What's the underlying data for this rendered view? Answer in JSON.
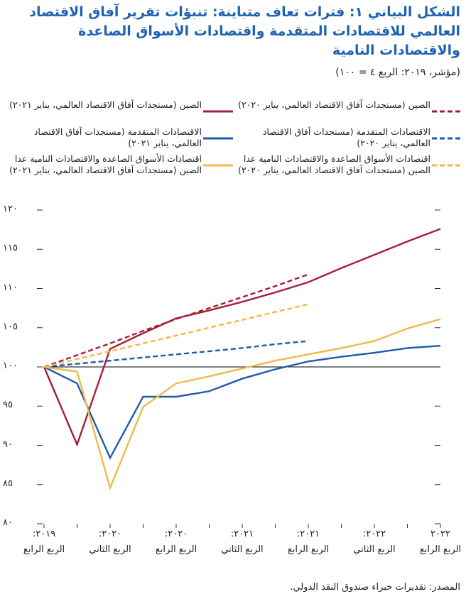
{
  "chart_data": {
    "type": "line",
    "title": "الشكل البياني ١: فترات تعاف متباينة: تنبؤات تقرير آفاق الاقتصاد العالمي للاقتصادات المتقدمة واقتصادات الأسواق الصاعدة والاقتصادات النامية",
    "subtitle": "(مؤشر، ٢٠١٩: الربع ٤ = ١٠٠)",
    "source": "المصدر: تقديرات خبراء صندوق النقد الدولي.",
    "categories": [
      "٢٠١٩:\nالربع الرابع",
      null,
      "٢٠٢٠:\nالربع الثاني",
      null,
      "٢٠٢٠:\nالربع الرابع",
      null,
      "٢٠٢١:\nالربع الثاني",
      null,
      "٢٠٢١:\nالربع الرابع",
      null,
      "٢٠٢٢:\nالربع الثاني",
      null,
      "٢٠٢٢\nالربع الرابع"
    ],
    "ylim": [
      80,
      120
    ],
    "yticks": [
      {
        "value": 80,
        "label": "٨٠"
      },
      {
        "value": 85,
        "label": "٨٥"
      },
      {
        "value": 90,
        "label": "٩٠"
      },
      {
        "value": 95,
        "label": "٩٥"
      },
      {
        "value": 100,
        "label": "١٠٠"
      },
      {
        "value": 105,
        "label": "١٠٥"
      },
      {
        "value": 110,
        "label": "١١٠"
      },
      {
        "value": 115,
        "label": "١١٥"
      },
      {
        "value": 120,
        "label": "١٢٠"
      }
    ],
    "reference_line": 100,
    "series": [
      {
        "name": "الصين (مستجدات آفاق الاقتصاد العالمي، يناير ٢٠٢٠)",
        "color": "#a51f37",
        "style": "dashed",
        "values": [
          100,
          101.5,
          103,
          104.6,
          106.1,
          107.5,
          108.9,
          110.3,
          111.8,
          null,
          null,
          null,
          null
        ]
      },
      {
        "name": "الصين (مستجدات آفاق الاقتصاد العالمي، يناير ٢٠٢١)",
        "color": "#a51f37",
        "style": "solid",
        "values": [
          100,
          90.1,
          102.3,
          104.3,
          106.2,
          107.2,
          108.3,
          109.5,
          110.8,
          112.6,
          114.3,
          116,
          117.6
        ]
      },
      {
        "name": "الاقتصادات المتقدمة (مستجدات آفاق الاقتصاد العالمي، يناير ٢٠٢٠)",
        "color": "#1f5aad",
        "style": "dashed",
        "values": [
          100,
          100.4,
          100.8,
          101.2,
          101.6,
          102,
          102.4,
          102.9,
          103.3,
          null,
          null,
          null,
          null
        ]
      },
      {
        "name": "الاقتصادات المتقدمة (مستجدات آفاق الاقتصاد العالمي، يناير ٢٠٢١)",
        "color": "#1f5aad",
        "style": "solid",
        "values": [
          100,
          97.9,
          88.4,
          96.2,
          96.2,
          96.9,
          98.5,
          99.7,
          100.7,
          101.3,
          101.8,
          102.4,
          102.7
        ]
      },
      {
        "name": "اقتصادات الأسواق الصاعدة والاقتصادات النامية عدا الصين (مستجدات آفاق الاقتصاد العالمي، يناير ٢٠٢٠)",
        "color": "#f2b84b",
        "style": "dashed",
        "values": [
          100,
          101,
          102,
          103,
          104,
          105,
          106,
          107,
          108,
          null,
          null,
          null,
          null
        ]
      },
      {
        "name": "اقتصادات الأسواق الصاعدة والاقتصادات النامية عدا الصين (مستجدات آفاق الاقتصاد العالمي، يناير ٢٠٢١)",
        "color": "#f2b84b",
        "style": "solid",
        "values": [
          100,
          99.4,
          84.6,
          94.9,
          97.9,
          98.8,
          99.8,
          100.8,
          101.6,
          102.4,
          103.3,
          104.9,
          106.1
        ]
      }
    ]
  }
}
